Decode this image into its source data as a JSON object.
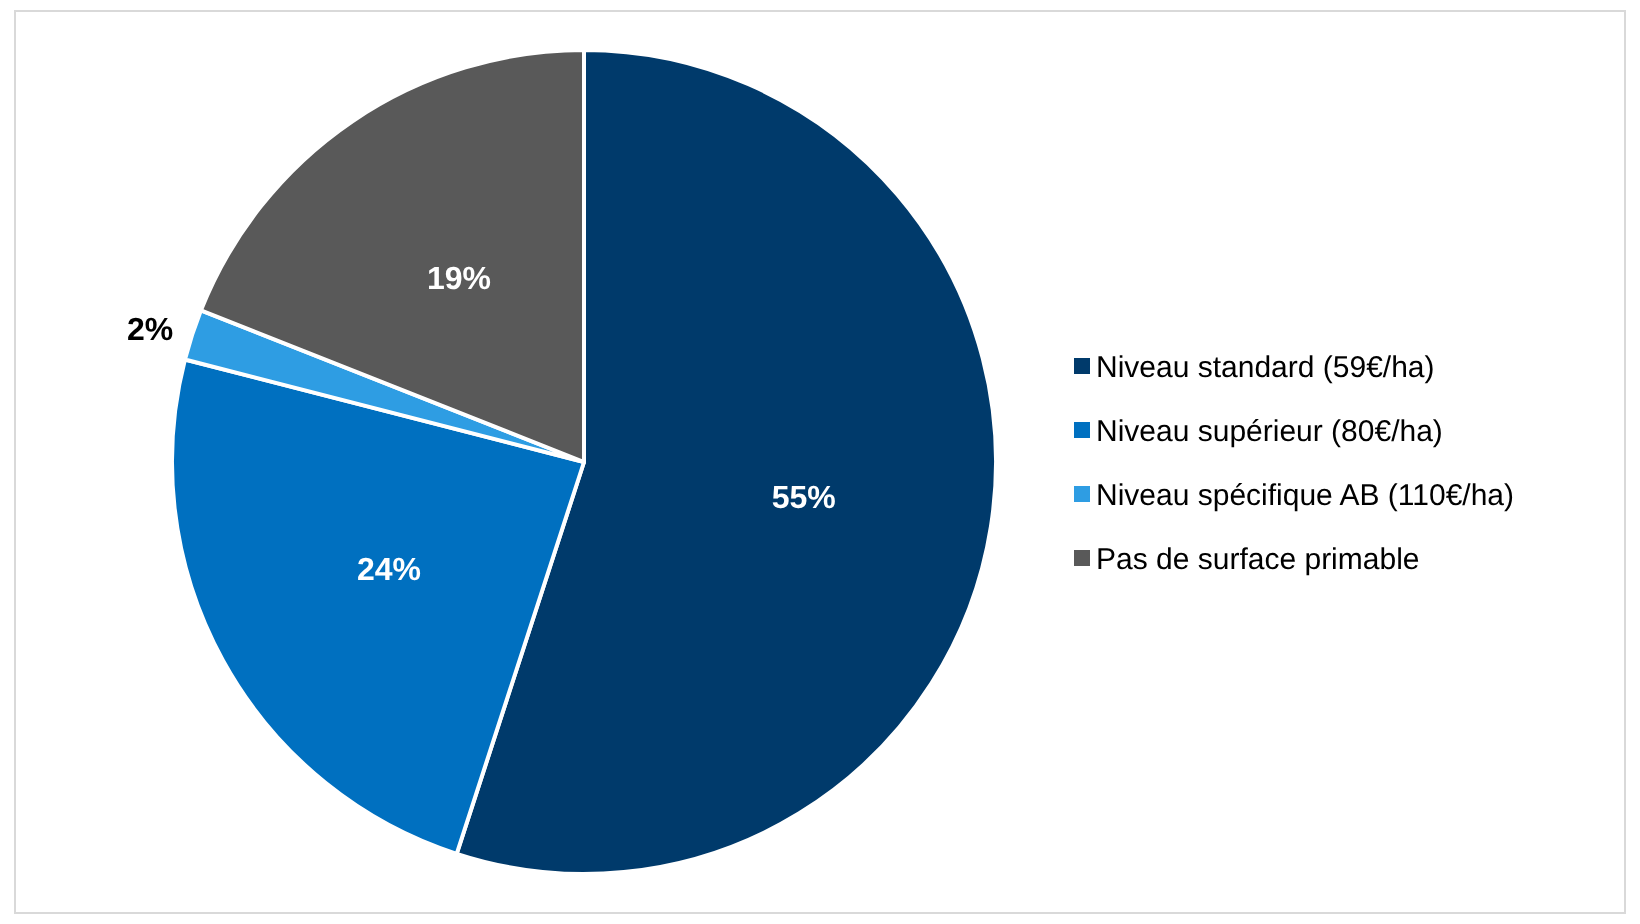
{
  "chart_data": {
    "type": "pie",
    "categories": [
      "Niveau standard (59€/ha)",
      "Niveau supérieur (80€/ha)",
      "Niveau spécifique AB (110€/ha)",
      "Pas de surface primable"
    ],
    "values": [
      55,
      24,
      2,
      19
    ],
    "colors": [
      "#003a6b",
      "#0070c0",
      "#2e9de3",
      "#595959"
    ],
    "value_labels": [
      "55%",
      "24%",
      "2%",
      "19%"
    ],
    "legend": "right"
  }
}
